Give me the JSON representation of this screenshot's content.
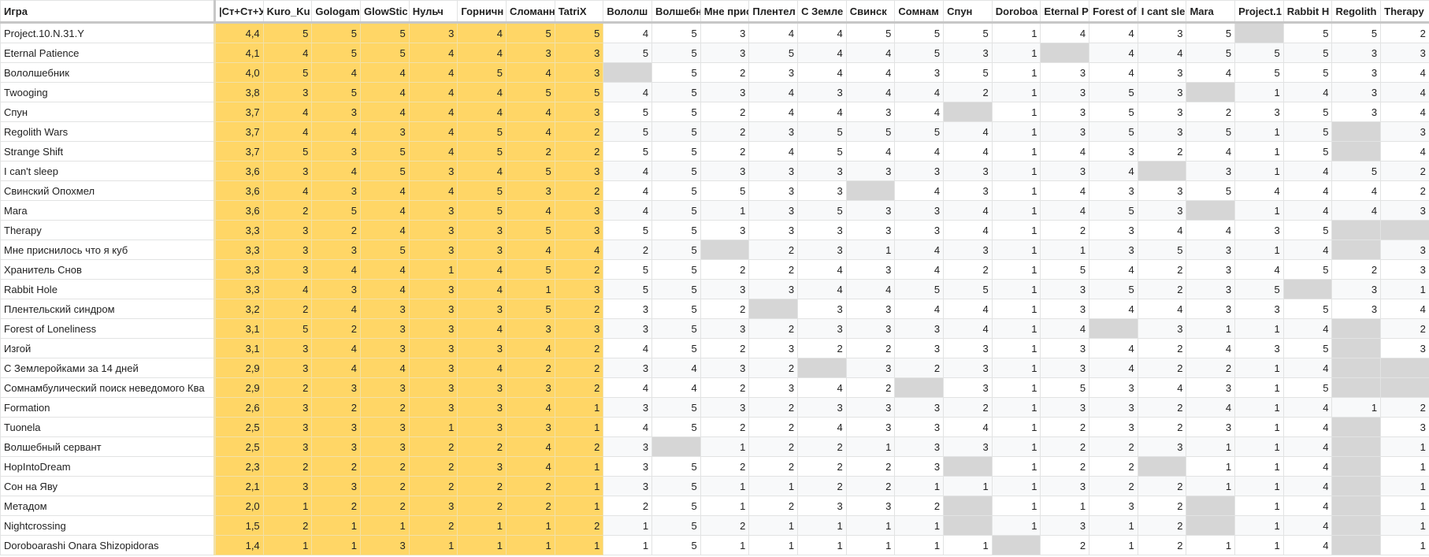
{
  "table": {
    "header": [
      "Игра",
      "|Ст+Ст+У",
      "Kuro_Ku",
      "Gologam",
      "GlowStic",
      "Нульч",
      "Горничн",
      "Сломанн",
      "TatriX",
      "Вололш",
      "Волшебн",
      "Мне присн",
      "Плентел",
      "С Земле",
      "Свинск",
      "Сомнам",
      "Спун",
      "Doroboa",
      "Eternal P",
      "Forest of",
      "I cant sle",
      "Mara",
      "Project.1",
      "Rabbit H",
      "Regolith",
      "Therapy"
    ],
    "rows": [
      [
        "Project.10.N.31.Y",
        "4,4",
        5,
        5,
        5,
        3,
        4,
        5,
        5,
        4,
        5,
        3,
        4,
        4,
        5,
        5,
        5,
        1,
        4,
        4,
        3,
        5,
        null,
        5,
        5,
        2
      ],
      [
        "Eternal Patience",
        "4,1",
        4,
        5,
        5,
        4,
        4,
        3,
        3,
        5,
        5,
        3,
        5,
        4,
        4,
        5,
        3,
        1,
        null,
        4,
        4,
        5,
        5,
        5,
        3,
        3
      ],
      [
        "Вололшебник",
        "4,0",
        5,
        4,
        4,
        4,
        5,
        4,
        3,
        null,
        5,
        2,
        3,
        4,
        4,
        3,
        5,
        1,
        3,
        4,
        3,
        4,
        5,
        5,
        3,
        4
      ],
      [
        "Twooging",
        "3,8",
        3,
        5,
        4,
        4,
        4,
        5,
        5,
        4,
        5,
        3,
        4,
        3,
        4,
        4,
        2,
        1,
        3,
        5,
        3,
        null,
        1,
        4,
        3,
        4
      ],
      [
        "Спун",
        "3,7",
        4,
        3,
        4,
        4,
        4,
        4,
        3,
        5,
        5,
        2,
        4,
        4,
        3,
        4,
        null,
        1,
        3,
        5,
        3,
        2,
        3,
        5,
        3,
        4
      ],
      [
        "Regolith Wars",
        "3,7",
        4,
        4,
        3,
        4,
        5,
        4,
        2,
        5,
        5,
        2,
        3,
        5,
        5,
        5,
        4,
        1,
        3,
        5,
        3,
        5,
        1,
        5,
        null,
        3
      ],
      [
        "Strange Shift",
        "3,7",
        5,
        3,
        5,
        4,
        5,
        2,
        2,
        5,
        5,
        2,
        4,
        5,
        4,
        4,
        4,
        1,
        4,
        3,
        2,
        4,
        1,
        5,
        null,
        4
      ],
      [
        "I can't sleep",
        "3,6",
        3,
        4,
        5,
        3,
        4,
        5,
        3,
        4,
        5,
        3,
        3,
        3,
        3,
        3,
        3,
        1,
        3,
        4,
        null,
        3,
        1,
        4,
        5,
        2
      ],
      [
        "Свинский Опохмел",
        "3,6",
        4,
        3,
        4,
        4,
        5,
        3,
        2,
        4,
        5,
        5,
        3,
        3,
        null,
        4,
        3,
        1,
        4,
        3,
        3,
        5,
        4,
        4,
        4,
        2
      ],
      [
        "Mara",
        "3,6",
        2,
        5,
        4,
        3,
        5,
        4,
        3,
        4,
        5,
        1,
        3,
        5,
        3,
        3,
        4,
        1,
        4,
        5,
        3,
        null,
        1,
        4,
        4,
        3
      ],
      [
        "Therapy",
        "3,3",
        3,
        2,
        4,
        3,
        3,
        5,
        3,
        5,
        5,
        3,
        3,
        3,
        3,
        3,
        4,
        1,
        2,
        3,
        4,
        4,
        3,
        5,
        null,
        null
      ],
      [
        "Мне приснилось что я куб",
        "3,3",
        3,
        3,
        5,
        3,
        3,
        4,
        4,
        2,
        5,
        null,
        2,
        3,
        1,
        4,
        3,
        1,
        1,
        3,
        5,
        3,
        1,
        4,
        null,
        3
      ],
      [
        "Хранитель Снов",
        "3,3",
        3,
        4,
        4,
        1,
        4,
        5,
        2,
        5,
        5,
        2,
        2,
        4,
        3,
        4,
        2,
        1,
        5,
        4,
        2,
        3,
        4,
        5,
        2,
        3
      ],
      [
        "Rabbit Hole",
        "3,3",
        4,
        3,
        4,
        3,
        4,
        1,
        3,
        5,
        5,
        3,
        3,
        4,
        4,
        5,
        5,
        1,
        3,
        5,
        2,
        3,
        5,
        null,
        3,
        1
      ],
      [
        "Плентельский синдром",
        "3,2",
        2,
        4,
        3,
        3,
        3,
        5,
        2,
        3,
        5,
        2,
        null,
        3,
        3,
        4,
        4,
        1,
        3,
        4,
        4,
        3,
        3,
        5,
        3,
        4
      ],
      [
        "Forest of Loneliness",
        "3,1",
        5,
        2,
        3,
        3,
        4,
        3,
        3,
        3,
        5,
        3,
        2,
        3,
        3,
        3,
        4,
        1,
        4,
        null,
        3,
        1,
        1,
        4,
        null,
        2
      ],
      [
        "Изгой",
        "3,1",
        3,
        4,
        3,
        3,
        3,
        4,
        2,
        4,
        5,
        2,
        3,
        2,
        2,
        3,
        3,
        1,
        3,
        4,
        2,
        4,
        3,
        5,
        null,
        3
      ],
      [
        "С Землеройками за 14 дней",
        "2,9",
        3,
        4,
        4,
        3,
        4,
        2,
        2,
        3,
        4,
        3,
        2,
        null,
        3,
        2,
        3,
        1,
        3,
        4,
        2,
        2,
        1,
        4,
        null,
        null
      ],
      [
        "Сомнамбулический поиск неведомого Ква",
        "2,9",
        2,
        3,
        3,
        3,
        3,
        3,
        2,
        4,
        4,
        2,
        3,
        4,
        2,
        null,
        3,
        1,
        5,
        3,
        4,
        3,
        1,
        5,
        null,
        null
      ],
      [
        "Formation",
        "2,6",
        3,
        2,
        2,
        3,
        3,
        4,
        1,
        3,
        5,
        3,
        2,
        3,
        3,
        3,
        2,
        1,
        3,
        3,
        2,
        4,
        1,
        4,
        1,
        2
      ],
      [
        "Tuonela",
        "2,5",
        3,
        3,
        3,
        1,
        3,
        3,
        1,
        4,
        5,
        2,
        2,
        4,
        3,
        3,
        4,
        1,
        2,
        3,
        2,
        3,
        1,
        4,
        null,
        3
      ],
      [
        "Волшебный сервант",
        "2,5",
        3,
        3,
        3,
        2,
        2,
        4,
        2,
        3,
        null,
        1,
        2,
        2,
        1,
        3,
        3,
        1,
        2,
        2,
        3,
        1,
        1,
        4,
        null,
        1
      ],
      [
        "HopIntoDream",
        "2,3",
        2,
        2,
        2,
        2,
        3,
        4,
        1,
        3,
        5,
        2,
        2,
        2,
        2,
        3,
        null,
        1,
        2,
        2,
        null,
        1,
        1,
        4,
        null,
        1
      ],
      [
        "Сон на Яву",
        "2,1",
        3,
        3,
        2,
        2,
        2,
        2,
        1,
        3,
        5,
        1,
        1,
        2,
        2,
        1,
        1,
        1,
        3,
        2,
        2,
        1,
        1,
        4,
        null,
        1
      ],
      [
        "Метадом",
        "2,0",
        1,
        2,
        2,
        3,
        2,
        2,
        1,
        2,
        5,
        1,
        2,
        3,
        3,
        2,
        null,
        1,
        1,
        3,
        2,
        null,
        1,
        4,
        null,
        1
      ],
      [
        "Nightcrossing",
        "1,5",
        2,
        1,
        1,
        2,
        1,
        1,
        2,
        1,
        5,
        2,
        1,
        1,
        1,
        1,
        null,
        1,
        3,
        1,
        2,
        null,
        1,
        4,
        null,
        1
      ],
      [
        "Doroboarashi Onara Shizopidoras",
        "1,4",
        1,
        1,
        3,
        1,
        1,
        1,
        1,
        1,
        5,
        1,
        1,
        1,
        1,
        1,
        1,
        null,
        2,
        1,
        2,
        1,
        1,
        4,
        null,
        1
      ]
    ]
  }
}
